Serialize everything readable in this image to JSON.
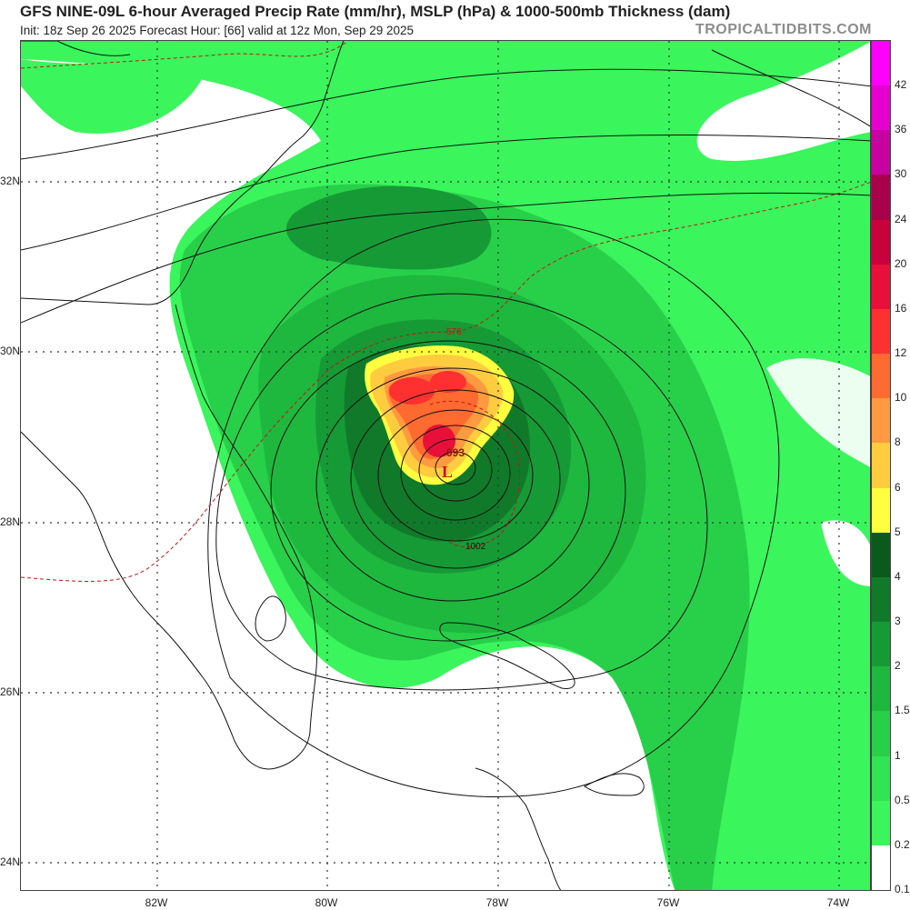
{
  "header": {
    "title": "GFS NINE-09L 6-hour Averaged Precip Rate (mm/hr), MSLP (hPa) & 1000-500mb Thickness (dam)",
    "subtitle": "Init: 18z Sep 26 2025   Forecast Hour: [66]   valid at 12z Mon, Sep 29 2025",
    "brand": "TROPICALTIDBITS.COM"
  },
  "map": {
    "lat_labels": [
      "32N",
      "30N",
      "28N",
      "26N",
      "24N"
    ],
    "lon_labels": [
      "82W",
      "80W",
      "78W",
      "76W",
      "74W"
    ],
    "low_center": {
      "pressure_label": "993",
      "symbol": "L"
    },
    "isobar_label": "1002",
    "thickness_label": "576"
  },
  "colorbar": {
    "labels": [
      "42",
      "36",
      "30",
      "24",
      "20",
      "16",
      "12",
      "10",
      "8",
      "6",
      "5",
      "4",
      "3",
      "2",
      "1.5",
      "1",
      "0.5",
      "0.25",
      "0.1"
    ],
    "colors": [
      "#ff00ff",
      "#e600d0",
      "#c800a0",
      "#a8004a",
      "#c8003c",
      "#e8103a",
      "#ff3030",
      "#ff6a30",
      "#ff9a40",
      "#ffcc40",
      "#ffff40",
      "#0a5a1e",
      "#107a2a",
      "#169a36",
      "#1eb83e",
      "#28d04a",
      "#30e454",
      "#3af55c",
      "#ffffff"
    ]
  }
}
